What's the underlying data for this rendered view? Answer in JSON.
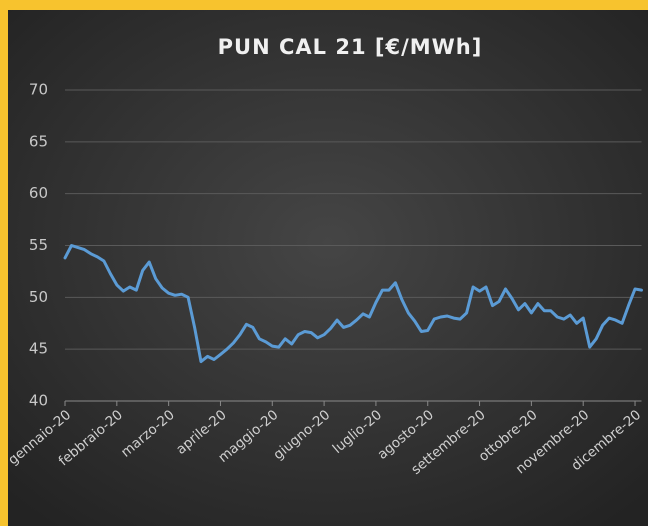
{
  "chart_data": {
    "type": "line",
    "title": "PUN CAL 21 [€/MWh]",
    "categories": [
      "gennaio-20",
      null,
      null,
      null,
      null,
      null,
      null,
      null,
      "febbraio-20",
      null,
      null,
      null,
      null,
      null,
      null,
      null,
      "marzo-20",
      null,
      null,
      null,
      null,
      null,
      null,
      null,
      "aprile-20",
      null,
      null,
      null,
      null,
      null,
      null,
      null,
      "maggio-20",
      null,
      null,
      null,
      null,
      null,
      null,
      null,
      "giugno-20",
      null,
      null,
      null,
      null,
      null,
      null,
      null,
      "luglio-20",
      null,
      null,
      null,
      null,
      null,
      null,
      null,
      "agosto-20",
      null,
      null,
      null,
      null,
      null,
      null,
      null,
      "settembre-20",
      null,
      null,
      null,
      null,
      null,
      null,
      null,
      "ottobre-20",
      null,
      null,
      null,
      null,
      null,
      null,
      null,
      "novembre-20",
      null,
      null,
      null,
      null,
      null,
      null,
      null,
      "dicembre-20",
      null
    ],
    "values": [
      53.8,
      55.0,
      54.8,
      54.6,
      54.2,
      53.9,
      53.5,
      52.3,
      51.2,
      50.6,
      51.0,
      50.7,
      52.6,
      53.4,
      51.8,
      50.9,
      50.4,
      50.2,
      50.3,
      50.0,
      47.1,
      43.8,
      44.3,
      44.0,
      44.5,
      45.0,
      45.6,
      46.4,
      47.4,
      47.1,
      46.0,
      45.7,
      45.3,
      45.2,
      46.0,
      45.5,
      46.4,
      46.7,
      46.6,
      46.1,
      46.4,
      47.0,
      47.8,
      47.1,
      47.3,
      47.8,
      48.4,
      48.1,
      49.5,
      50.7,
      50.7,
      51.4,
      49.8,
      48.5,
      47.7,
      46.7,
      46.8,
      47.9,
      48.1,
      48.2,
      48.0,
      47.9,
      48.5,
      51.0,
      50.6,
      51.0,
      49.2,
      49.6,
      50.8,
      49.9,
      48.8,
      49.4,
      48.5,
      49.4,
      48.7,
      48.7,
      48.1,
      47.9,
      48.3,
      47.5,
      48.0,
      45.2,
      46.0,
      47.3,
      48.0,
      47.8,
      47.5,
      49.2,
      50.8,
      50.7
    ],
    "color": "#5b9bd5",
    "ylim": [
      40,
      70
    ],
    "yticks": [
      40,
      45,
      50,
      55,
      60,
      65,
      70
    ],
    "grid": true
  }
}
